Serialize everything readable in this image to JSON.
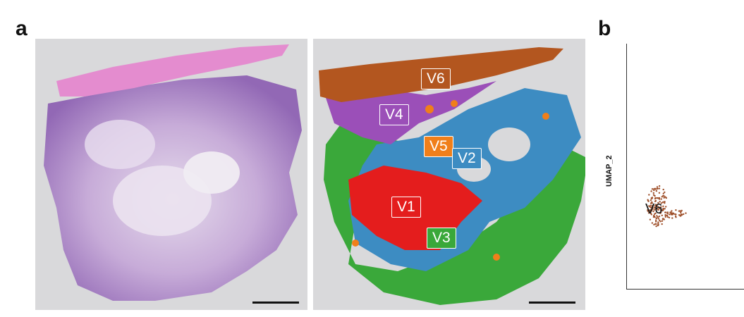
{
  "panels": {
    "a": {
      "letter": "a"
    },
    "b": {
      "letter": "b"
    }
  },
  "he_image": {
    "description_icon": "he-stained-tissue-icon"
  },
  "spatial_map": {
    "regions": [
      {
        "label": "V6",
        "color": "#b3561f"
      },
      {
        "label": "V4",
        "color": "#9b4fb8"
      },
      {
        "label": "V5",
        "color": "#f07f1a"
      },
      {
        "label": "V2",
        "color": "#3d8cc2"
      },
      {
        "label": "V1",
        "color": "#e41d1d"
      },
      {
        "label": "V3",
        "color": "#3aa83a"
      }
    ]
  },
  "umap": {
    "y_axis_label": "UMAP_2",
    "cluster_label": "V6",
    "cluster_color": "#a0522d"
  }
}
